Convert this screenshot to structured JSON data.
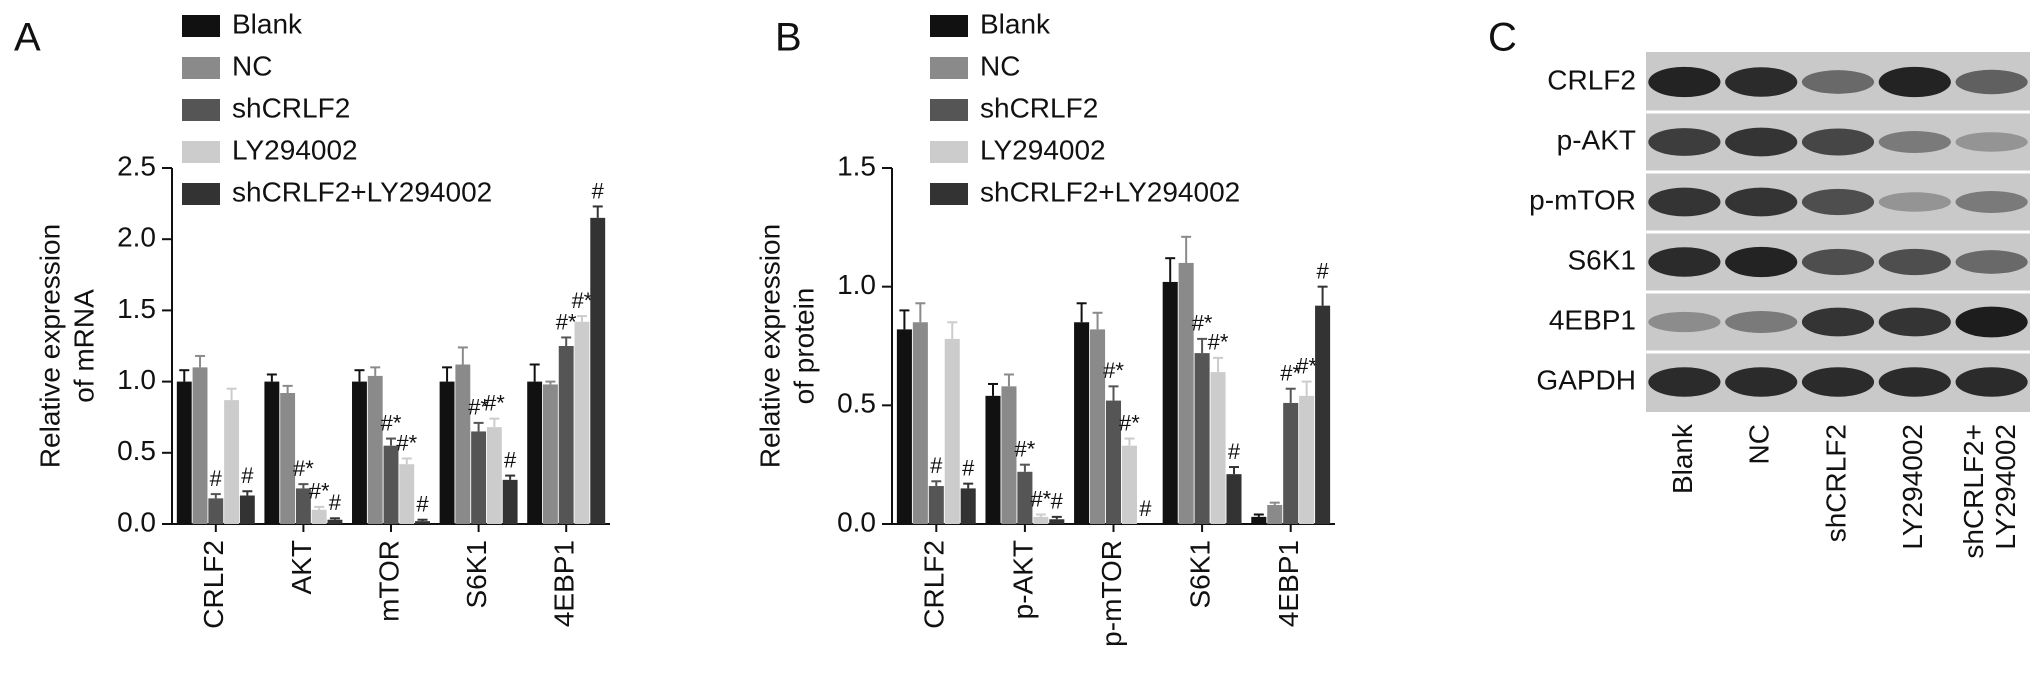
{
  "chart_data": [
    {
      "type": "bar",
      "panel_label": "A",
      "ylabel": [
        "Relative expression",
        "of mRNA"
      ],
      "categories": [
        "CRLF2",
        "AKT",
        "mTOR",
        "S6K1",
        "4EBP1"
      ],
      "ylim": [
        0,
        2.5
      ],
      "yticks": [
        {
          "value": 0,
          "label": "0.0"
        },
        0.5,
        {
          "value": 1,
          "label": "1.0"
        },
        1.5,
        {
          "value": 2,
          "label": "2.0"
        },
        2.5
      ],
      "series": [
        {
          "name": "Blank",
          "color": "#111111",
          "values": [
            1.0,
            1.0,
            1.0,
            1.0,
            1.0
          ],
          "errors": [
            0.08,
            0.05,
            0.08,
            0.1,
            0.12
          ],
          "annotations": [
            null,
            null,
            null,
            null,
            null
          ]
        },
        {
          "name": "NC",
          "color": "#8a8a8a",
          "values": [
            1.1,
            0.92,
            1.04,
            1.12,
            0.98
          ],
          "errors": [
            0.08,
            0.05,
            0.06,
            0.12,
            0.02
          ],
          "annotations": [
            null,
            null,
            null,
            null,
            null
          ]
        },
        {
          "name": "shCRLF2",
          "color": "#555555",
          "values": [
            0.18,
            0.25,
            0.55,
            0.65,
            1.25
          ],
          "errors": [
            0.03,
            0.03,
            0.05,
            0.06,
            0.06
          ],
          "annotations": [
            "#",
            "#*",
            "#*",
            "#*",
            "#*"
          ]
        },
        {
          "name": "LY294002",
          "color": "#cccccc",
          "values": [
            0.87,
            0.1,
            0.42,
            0.68,
            1.42
          ],
          "errors": [
            0.08,
            0.02,
            0.04,
            0.06,
            0.04
          ],
          "annotations": [
            null,
            "#*",
            "#*",
            "#*",
            "#*"
          ]
        },
        {
          "name": "shCRLF2+LY294002",
          "color": "#333333",
          "values": [
            0.2,
            0.03,
            0.02,
            0.31,
            2.15
          ],
          "errors": [
            0.03,
            0.01,
            0.01,
            0.03,
            0.08
          ],
          "annotations": [
            "#",
            "#",
            "#",
            "#",
            "#"
          ]
        }
      ]
    },
    {
      "type": "bar",
      "panel_label": "B",
      "ylabel": [
        "Relative expression",
        "of protein"
      ],
      "categories": [
        "CRLF2",
        "p-AKT",
        "p-mTOR",
        "S6K1",
        "4EBP1"
      ],
      "ylim": [
        0,
        1.5
      ],
      "yticks": [
        {
          "value": 0,
          "label": "0.0"
        },
        0.5,
        {
          "value": 1,
          "label": "1.0"
        },
        1.5
      ],
      "series": [
        {
          "name": "Blank",
          "color": "#111111",
          "values": [
            0.82,
            0.54,
            0.85,
            1.02,
            0.03
          ],
          "errors": [
            0.08,
            0.05,
            0.08,
            0.1,
            0.01
          ],
          "annotations": [
            null,
            null,
            null,
            null,
            null
          ]
        },
        {
          "name": "NC",
          "color": "#8a8a8a",
          "values": [
            0.85,
            0.58,
            0.82,
            1.1,
            0.08
          ],
          "errors": [
            0.08,
            0.05,
            0.07,
            0.11,
            0.01
          ],
          "annotations": [
            null,
            null,
            null,
            null,
            null
          ]
        },
        {
          "name": "shCRLF2",
          "color": "#555555",
          "values": [
            0.16,
            0.22,
            0.52,
            0.72,
            0.51
          ],
          "errors": [
            0.02,
            0.03,
            0.06,
            0.06,
            0.06
          ],
          "annotations": [
            "#",
            "#*",
            "#*",
            "#*",
            "#*"
          ]
        },
        {
          "name": "LY294002",
          "color": "#cccccc",
          "values": [
            0.78,
            0.03,
            0.33,
            0.64,
            0.54
          ],
          "errors": [
            0.07,
            0.01,
            0.03,
            0.06,
            0.06
          ],
          "annotations": [
            null,
            "#*",
            "#*",
            "#*",
            "#*"
          ]
        },
        {
          "name": "shCRLF2+LY294002",
          "color": "#333333",
          "values": [
            0.15,
            0.02,
            0,
            0.21,
            0.92
          ],
          "errors": [
            0.02,
            0.01,
            0,
            0.03,
            0.08
          ],
          "annotations": [
            "#",
            "#",
            "#",
            "#",
            "#"
          ]
        }
      ]
    }
  ],
  "blot": {
    "panel_label": "C",
    "rows": [
      "CRLF2",
      "p-AKT",
      "p-mTOR",
      "S6K1",
      "4EBP1",
      "GAPDH"
    ],
    "columns": [
      [
        "Blank"
      ],
      [
        "NC"
      ],
      [
        "shCRLF2"
      ],
      [
        "LY294002"
      ],
      [
        "shCRLF2+",
        "LY294002"
      ]
    ]
  }
}
